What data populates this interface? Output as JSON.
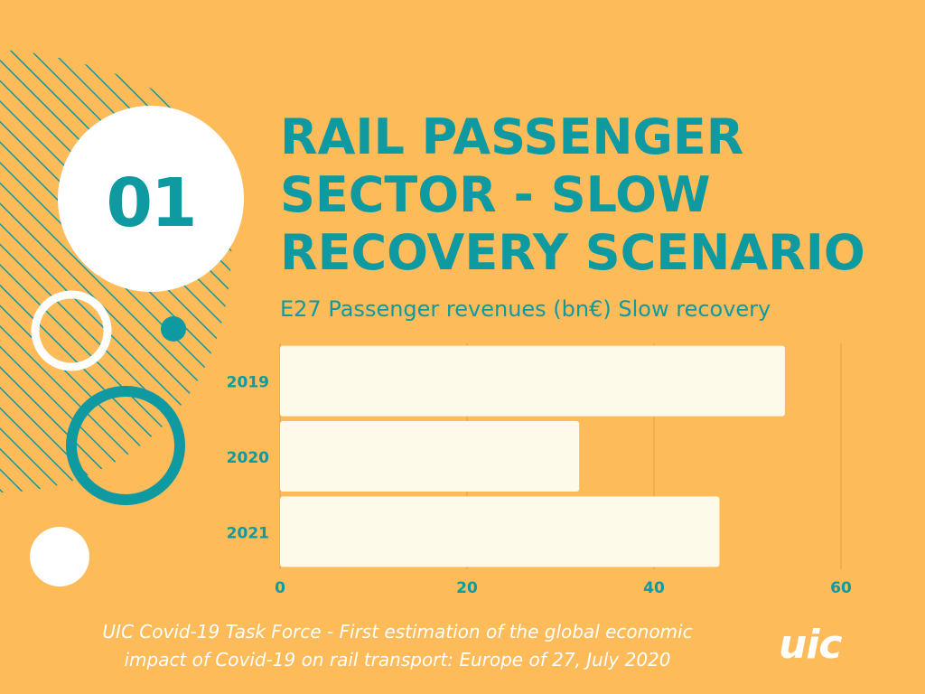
{
  "badge": {
    "number": "01"
  },
  "title": "RAIL PASSENGER SECTOR - SLOW RECOVERY SCENARIO",
  "chart_data": {
    "type": "bar",
    "orientation": "horizontal",
    "title": "E27 Passenger revenues (bn€) Slow recovery",
    "categories": [
      "2019",
      "2020",
      "2021"
    ],
    "values": [
      54,
      32,
      47
    ],
    "xlim": [
      0,
      60
    ],
    "xticks": [
      0,
      20,
      40,
      60
    ],
    "grid": true,
    "bar_color": "#fdfaea",
    "label_color": "#0e9aa0"
  },
  "footer": {
    "line1": "UIC Covid-19 Task Force - First estimation of the global economic",
    "line2": "impact of Covid-19 on rail transport: Europe of 27, July 2020"
  },
  "logo": {
    "text": "uic"
  }
}
